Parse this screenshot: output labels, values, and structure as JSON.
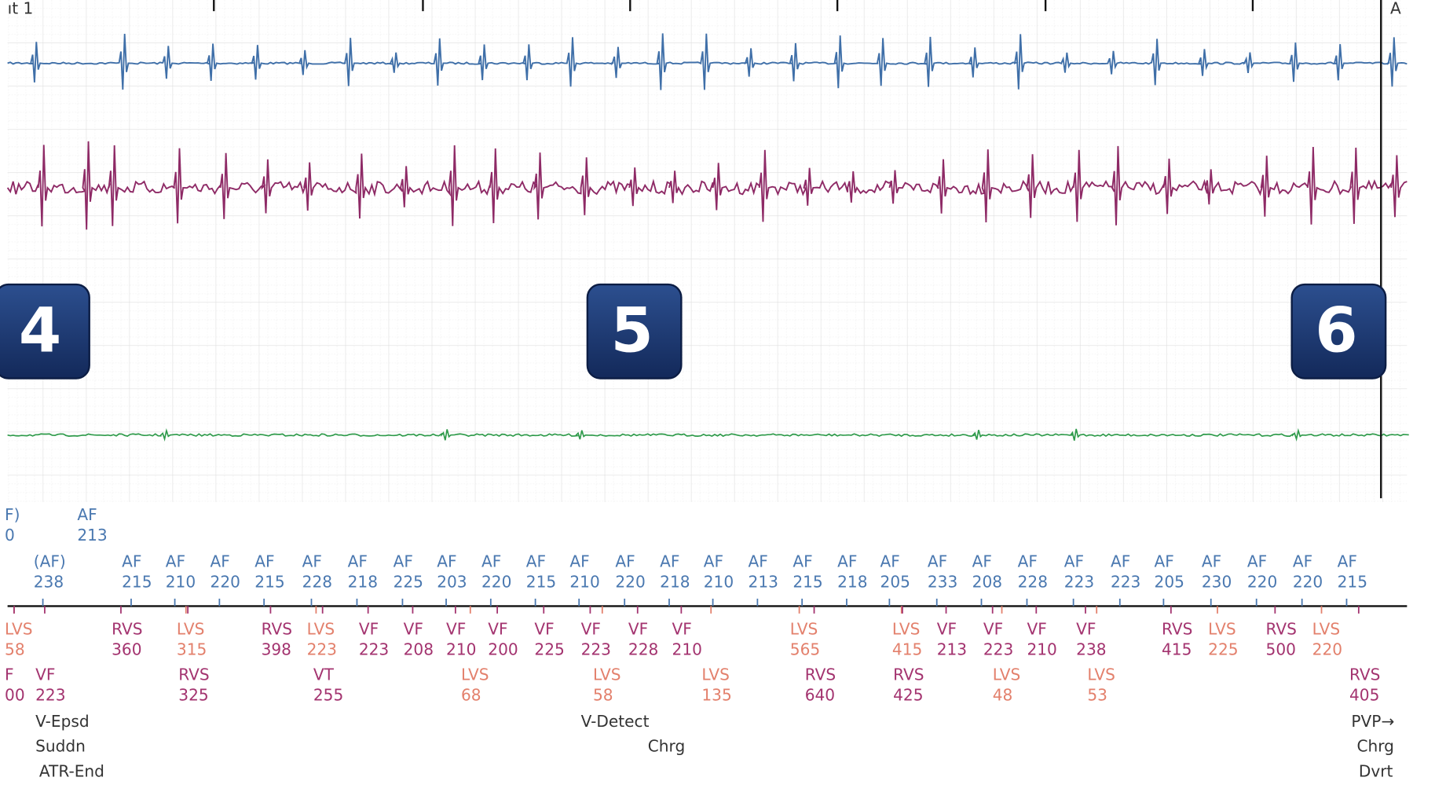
{
  "header": {
    "left": "ıt 1",
    "right": "A"
  },
  "badges": [
    "4",
    "5",
    "6"
  ],
  "marker_rows": [
    [
      {
        "label": "F)",
        "value": "0",
        "color": "#4a78b0"
      },
      {
        "label": "AF",
        "value": "213",
        "color": "#4a78b0"
      }
    ],
    [
      {
        "label": "(AF)",
        "value": "238",
        "color": "#4a78b0"
      },
      {
        "label": "AF",
        "value": "215",
        "color": "#4a78b0"
      },
      {
        "label": "AF",
        "value": "210",
        "color": "#4a78b0"
      },
      {
        "label": "AF",
        "value": "220",
        "color": "#4a78b0"
      },
      {
        "label": "AF",
        "value": "215",
        "color": "#4a78b0"
      },
      {
        "label": "AF",
        "value": "228",
        "color": "#4a78b0"
      },
      {
        "label": "AF",
        "value": "218",
        "color": "#4a78b0"
      },
      {
        "label": "AF",
        "value": "225",
        "color": "#4a78b0"
      },
      {
        "label": "AF",
        "value": "203",
        "color": "#4a78b0"
      },
      {
        "label": "AF",
        "value": "220",
        "color": "#4a78b0"
      },
      {
        "label": "AF",
        "value": "215",
        "color": "#4a78b0"
      },
      {
        "label": "AF",
        "value": "210",
        "color": "#4a78b0"
      },
      {
        "label": "AF",
        "value": "220",
        "color": "#4a78b0"
      },
      {
        "label": "AF",
        "value": "218",
        "color": "#4a78b0"
      },
      {
        "label": "AF",
        "value": "210",
        "color": "#4a78b0"
      },
      {
        "label": "AF",
        "value": "213",
        "color": "#4a78b0"
      },
      {
        "label": "AF",
        "value": "215",
        "color": "#4a78b0"
      },
      {
        "label": "AF",
        "value": "218",
        "color": "#4a78b0"
      },
      {
        "label": "AF",
        "value": "205",
        "color": "#4a78b0"
      },
      {
        "label": "AF",
        "value": "233",
        "color": "#4a78b0"
      },
      {
        "label": "AF",
        "value": "208",
        "color": "#4a78b0"
      },
      {
        "label": "AF",
        "value": "228",
        "color": "#4a78b0"
      },
      {
        "label": "AF",
        "value": "223",
        "color": "#4a78b0"
      },
      {
        "label": "AF",
        "value": "223",
        "color": "#4a78b0"
      },
      {
        "label": "AF",
        "value": "205",
        "color": "#4a78b0"
      },
      {
        "label": "AF",
        "value": "230",
        "color": "#4a78b0"
      },
      {
        "label": "AF",
        "value": "220",
        "color": "#4a78b0"
      },
      {
        "label": "AF",
        "value": "220",
        "color": "#4a78b0"
      },
      {
        "label": "AF",
        "value": "215",
        "color": "#4a78b0"
      }
    ],
    [
      {
        "label": "LVS",
        "value": "58",
        "color": "#e3806c"
      },
      {
        "label": "RVS",
        "value": "360",
        "color": "#a3336f"
      },
      {
        "label": "LVS",
        "value": "315",
        "color": "#e3806c"
      },
      {
        "label": "RVS",
        "value": "398",
        "color": "#a3336f"
      },
      {
        "label": "LVS",
        "value": "223",
        "color": "#e3806c"
      },
      {
        "label": "VF",
        "value": "223",
        "color": "#a3336f"
      },
      {
        "label": "VF",
        "value": "208",
        "color": "#a3336f"
      },
      {
        "label": "VF",
        "value": "210",
        "color": "#a3336f"
      },
      {
        "label": "VF",
        "value": "200",
        "color": "#a3336f"
      },
      {
        "label": "VF",
        "value": "225",
        "color": "#a3336f"
      },
      {
        "label": "VF",
        "value": "223",
        "color": "#a3336f"
      },
      {
        "label": "VF",
        "value": "228",
        "color": "#a3336f"
      },
      {
        "label": "VF",
        "value": "210",
        "color": "#a3336f"
      },
      {
        "label": "LVS",
        "value": "565",
        "color": "#e3806c"
      },
      {
        "label": "LVS",
        "value": "415",
        "color": "#e3806c"
      },
      {
        "label": "VF",
        "value": "213",
        "color": "#a3336f"
      },
      {
        "label": "VF",
        "value": "223",
        "color": "#a3336f"
      },
      {
        "label": "VF",
        "value": "210",
        "color": "#a3336f"
      },
      {
        "label": "VF",
        "value": "238",
        "color": "#a3336f"
      },
      {
        "label": "RVS",
        "value": "415",
        "color": "#a3336f"
      },
      {
        "label": "LVS",
        "value": "225",
        "color": "#e3806c"
      },
      {
        "label": "RVS",
        "value": "500",
        "color": "#a3336f"
      },
      {
        "label": "LVS",
        "value": "220",
        "color": "#e3806c"
      }
    ],
    [
      {
        "label": "F",
        "value": "00",
        "color": "#a3336f"
      },
      {
        "label": "VF",
        "value": "223",
        "color": "#a3336f"
      },
      {
        "label": "RVS",
        "value": "325",
        "color": "#a3336f"
      },
      {
        "label": "VT",
        "value": "255",
        "color": "#a3336f"
      },
      {
        "label": "LVS",
        "value": "68",
        "color": "#e3806c"
      },
      {
        "label": "LVS",
        "value": "58",
        "color": "#e3806c"
      },
      {
        "label": "LVS",
        "value": "135",
        "color": "#e3806c"
      },
      {
        "label": "RVS",
        "value": "640",
        "color": "#a3336f"
      },
      {
        "label": "RVS",
        "value": "425",
        "color": "#a3336f"
      },
      {
        "label": "LVS",
        "value": "48",
        "color": "#e3806c"
      },
      {
        "label": "LVS",
        "value": "53",
        "color": "#e3806c"
      },
      {
        "label": "RVS",
        "value": "405",
        "color": "#a3336f"
      }
    ]
  ],
  "annotations": [
    "V-Epsd",
    "Suddn",
    "ATR-End",
    "V-Detect",
    "Chrg",
    "PVP→",
    "Chrg",
    "Dvrt"
  ]
}
